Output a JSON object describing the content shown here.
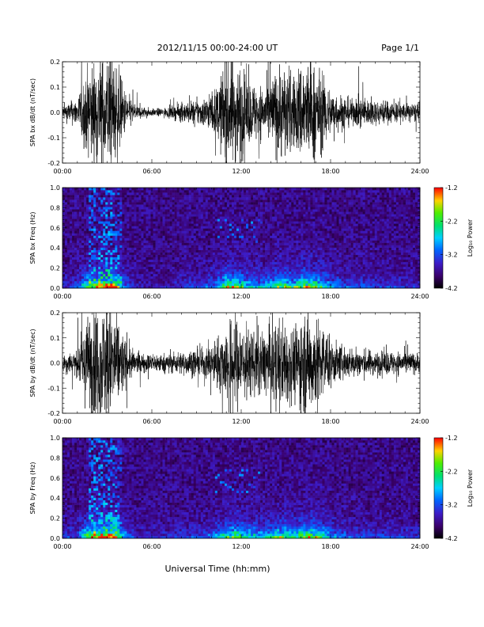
{
  "header": {
    "title": "2012/11/15  00:00-24:00 UT",
    "page": "Page 1/1"
  },
  "xlabel": "Universal Time (hh:mm)",
  "chart_data": [
    {
      "type": "line",
      "ylabel": "SPA bx dB/dt (nT/sec)",
      "xlim": [
        0,
        24
      ],
      "ylim": [
        -0.2,
        0.2
      ],
      "x_tick_labels": [
        "00:00",
        "06:00",
        "12:00",
        "18:00",
        "24:00"
      ],
      "y_tick_labels": [
        "-0.2",
        "-0.1",
        "0.0",
        "0.1",
        "0.2"
      ],
      "amplitude_envelope": {
        "hours": [
          0,
          1,
          1.4,
          1.8,
          2.3,
          2.8,
          3.2,
          3.7,
          4.2,
          5.0,
          6.0,
          7.0,
          8.0,
          9.5,
          10.3,
          11.0,
          11.6,
          12.0,
          12.5,
          13.0,
          13.5,
          14.0,
          14.5,
          15.0,
          15.5,
          16.0,
          16.5,
          17.0,
          17.5,
          18.0,
          18.5,
          19.0,
          19.5,
          20.0,
          21.0,
          22.0,
          23.0,
          24.0
        ],
        "amp": [
          0.03,
          0.06,
          0.14,
          0.2,
          0.22,
          0.24,
          0.25,
          0.2,
          0.09,
          0.03,
          0.015,
          0.02,
          0.04,
          0.06,
          0.1,
          0.22,
          0.22,
          0.2,
          0.13,
          0.12,
          0.11,
          0.14,
          0.2,
          0.2,
          0.15,
          0.22,
          0.22,
          0.2,
          0.15,
          0.1,
          0.08,
          0.07,
          0.05,
          0.07,
          0.05,
          0.05,
          0.04,
          0.04
        ]
      }
    },
    {
      "type": "heatmap",
      "ylabel": "SPA bx Freq (Hz)",
      "xlim": [
        0,
        24
      ],
      "ylim": [
        0,
        1.0
      ],
      "x_tick_labels": [
        "00:00",
        "06:00",
        "12:00",
        "18:00",
        "24:00"
      ],
      "y_tick_labels": [
        "0.0",
        "0.2",
        "0.4",
        "0.6",
        "0.8",
        "1.0"
      ],
      "colorbar": {
        "label": "Log₁₀ Power",
        "range": [
          -4.2,
          -1.2
        ],
        "tick_labels": [
          "-4.2",
          "-3.2",
          "-2.2",
          "-1.2"
        ]
      }
    },
    {
      "type": "line",
      "ylabel": "SPA by dB/dt (nT/sec)",
      "xlim": [
        0,
        24
      ],
      "ylim": [
        -0.2,
        0.2
      ],
      "x_tick_labels": [
        "00:00",
        "06:00",
        "12:00",
        "18:00",
        "24:00"
      ],
      "y_tick_labels": [
        "-0.2",
        "-0.1",
        "0.0",
        "0.1",
        "0.2"
      ],
      "amplitude_envelope": {
        "hours": [
          0,
          1,
          1.4,
          1.8,
          2.3,
          2.8,
          3.2,
          3.7,
          4.2,
          5.0,
          6.0,
          7.0,
          8.0,
          9.5,
          10.3,
          11.0,
          11.6,
          12.0,
          12.5,
          13.0,
          13.5,
          14.0,
          14.5,
          15.0,
          15.5,
          16.0,
          16.5,
          17.0,
          17.5,
          18.0,
          18.5,
          19.0,
          19.5,
          20.0,
          21.0,
          22.0,
          23.0,
          24.0
        ],
        "amp": [
          0.04,
          0.06,
          0.14,
          0.22,
          0.24,
          0.25,
          0.25,
          0.2,
          0.1,
          0.04,
          0.04,
          0.04,
          0.05,
          0.06,
          0.1,
          0.16,
          0.2,
          0.18,
          0.14,
          0.14,
          0.13,
          0.16,
          0.18,
          0.2,
          0.15,
          0.22,
          0.22,
          0.2,
          0.16,
          0.1,
          0.08,
          0.07,
          0.06,
          0.06,
          0.05,
          0.05,
          0.05,
          0.04
        ]
      }
    },
    {
      "type": "heatmap",
      "ylabel": "SPA by Freq (Hz)",
      "xlim": [
        0,
        24
      ],
      "ylim": [
        0,
        1.0
      ],
      "x_tick_labels": [
        "00:00",
        "06:00",
        "12:00",
        "18:00",
        "24:00"
      ],
      "y_tick_labels": [
        "0.0",
        "0.2",
        "0.4",
        "0.6",
        "0.8",
        "1.0"
      ],
      "colorbar": {
        "label": "Log₁₀ Power",
        "range": [
          -4.2,
          -1.2
        ],
        "tick_labels": [
          "-4.2",
          "-3.2",
          "-2.2",
          "-1.2"
        ]
      }
    }
  ]
}
